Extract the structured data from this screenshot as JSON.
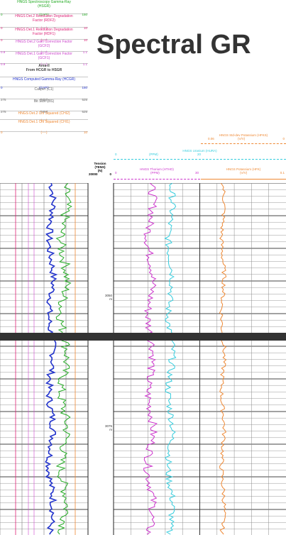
{
  "page_title": "Spectral GR",
  "left_headers": [
    {
      "name": "HNGS Spectroscopy Gamma-Ray",
      "sub": "(HSGR)",
      "unit": "(GAPI)",
      "min": "0",
      "max": "150",
      "color": "#22aa22"
    },
    {
      "name": "HNGS Det.2 Resolution Degradation",
      "sub": "Factor (RDF2)",
      "unit": "(----)",
      "min": "0",
      "max": "10",
      "color": "#dd2277"
    },
    {
      "name": "HNGS Det.1 Resolution Degradation",
      "sub": "Factor (RDF1)",
      "unit": "(----)",
      "min": "0",
      "max": "10",
      "color": "#dd2277"
    },
    {
      "name": "HNGS Det.2 Gain Correction Factor",
      "sub": "(GCF2)",
      "unit": "(----)",
      "min": "0.9",
      "max": "1.1",
      "color": "#cc44cc"
    },
    {
      "name": "HNGS Det.1 Gain Correction Factor",
      "sub": "(GCF1)",
      "unit": "(----)",
      "min": "0.9",
      "max": "1.1",
      "color": "#cc44cc"
    },
    {
      "name": "Area-II",
      "sub": "From HCGR to HSGR",
      "unit": "",
      "min": "",
      "max": "",
      "color": "#444444"
    },
    {
      "name": "HNGS Computed Gamma-Ray (HCGR)",
      "sub": "",
      "unit": "(GAPI)",
      "min": "0",
      "max": "150",
      "color": "#2233cc"
    },
    {
      "name": "Caliper (C1)",
      "sub": "",
      "unit": "(MM)",
      "min": "275",
      "max": "525",
      "color": "#666666"
    },
    {
      "name": "Bit Size (BS)",
      "sub": "",
      "unit": "(MM)",
      "min": "275",
      "max": "525",
      "color": "#666666"
    },
    {
      "name": "HNGS Det.2 Chi Squared (CHI2)",
      "sub": "",
      "unit": "(----)",
      "min": "",
      "max": "",
      "color": "#ee8833"
    },
    {
      "name": "HNGS Det.1 Chi Squared (CHI1)",
      "sub": "",
      "unit": "(----)",
      "min": "0",
      "max": "10",
      "color": "#ee8833"
    }
  ],
  "tension": {
    "label": "Tension",
    "sub": "(TENS)",
    "unit": "(N)",
    "min": "20000",
    "max": "0"
  },
  "right_headers": {
    "potassium_std": {
      "name": "HNGS Std-dev Potassium (HFKS)",
      "unit": "(V/V)",
      "min": "",
      "mid": "0.06",
      "max": "0",
      "color": "#ee8833"
    },
    "uranium": {
      "name": "HNGS Uranium (HURA)",
      "unit": "(PPM)",
      "min": "0",
      "max": "20",
      "color": "#33ccdd"
    },
    "thorium": {
      "name": "HNGS Thorium (HTHO)",
      "unit": "(PPM)",
      "min": "0",
      "max": "30",
      "color": "#cc33cc"
    },
    "potassium": {
      "name": "HNGS Potassium (HFK)",
      "unit": "(V/V)",
      "min": "",
      "max": "0.1",
      "color": "#ee8833"
    }
  },
  "depth_labels": [
    {
      "depth": "3050",
      "unit": "m"
    },
    {
      "depth": "3075",
      "unit": "m"
    }
  ],
  "chart_data": {
    "type": "line",
    "series": [
      {
        "name": "HNGS Computed Gamma-Ray (HCGR)",
        "color": "#2233cc"
      },
      {
        "name": "HNGS Spectroscopy Gamma-Ray (HSGR)",
        "color": "#22aa22"
      },
      {
        "name": "HNGS Thorium (HTHO)",
        "color": "#cc33cc"
      },
      {
        "name": "HNGS Uranium (HURA)",
        "color": "#33ccdd"
      },
      {
        "name": "HNGS Potassium (HFK)",
        "color": "#ee8833"
      }
    ],
    "grid": true
  }
}
